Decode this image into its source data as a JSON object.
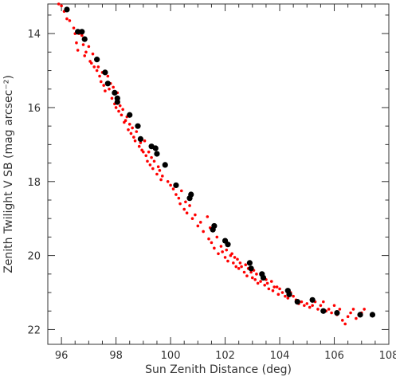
{
  "chart_data": {
    "type": "scatter",
    "title": "",
    "xlabel": "Sun Zenith Distance (deg)",
    "ylabel": "Zenith Twilight V SB (mag arcsec⁻²)",
    "xlim": [
      95.5,
      108
    ],
    "ylim": [
      13.2,
      22.4
    ],
    "y_inverted": true,
    "grid": false,
    "x_major_ticks": [
      96,
      98,
      100,
      102,
      104,
      106,
      108
    ],
    "y_major_ticks": [
      14,
      16,
      18,
      20,
      22
    ],
    "x_tick_labels": [
      "96",
      "98",
      "100",
      "102",
      "104",
      "106",
      "108"
    ],
    "y_tick_labels": [
      "14",
      "16",
      "18",
      "20",
      "22"
    ],
    "series": [
      {
        "marker": "large-dot",
        "color": "#000000",
        "points": [
          [
            96.2,
            13.35
          ],
          [
            96.6,
            13.95
          ],
          [
            96.75,
            13.95
          ],
          [
            96.85,
            14.15
          ],
          [
            97.3,
            14.7
          ],
          [
            97.6,
            15.05
          ],
          [
            97.7,
            15.35
          ],
          [
            97.95,
            15.6
          ],
          [
            98.05,
            15.75
          ],
          [
            98.05,
            15.85
          ],
          [
            98.5,
            16.2
          ],
          [
            98.8,
            16.5
          ],
          [
            98.9,
            16.85
          ],
          [
            99.3,
            17.05
          ],
          [
            99.45,
            17.1
          ],
          [
            99.5,
            17.25
          ],
          [
            99.8,
            17.55
          ],
          [
            100.2,
            18.1
          ],
          [
            100.7,
            18.45
          ],
          [
            100.75,
            18.35
          ],
          [
            101.6,
            19.2
          ],
          [
            101.55,
            19.3
          ],
          [
            102.0,
            19.6
          ],
          [
            102.1,
            19.7
          ],
          [
            102.9,
            20.2
          ],
          [
            102.95,
            20.35
          ],
          [
            103.35,
            20.5
          ],
          [
            103.4,
            20.6
          ],
          [
            104.3,
            20.95
          ],
          [
            104.35,
            21.05
          ],
          [
            104.65,
            21.25
          ],
          [
            105.2,
            21.2
          ],
          [
            105.6,
            21.5
          ],
          [
            106.1,
            21.55
          ],
          [
            106.95,
            21.6
          ],
          [
            107.4,
            21.6
          ]
        ]
      },
      {
        "marker": "small-dot",
        "color": "#ff0000",
        "points": [
          [
            95.9,
            13.2
          ],
          [
            96.0,
            13.25
          ],
          [
            96.1,
            13.4
          ],
          [
            96.2,
            13.6
          ],
          [
            96.3,
            13.65
          ],
          [
            96.45,
            13.85
          ],
          [
            96.5,
            14.0
          ],
          [
            96.55,
            14.25
          ],
          [
            96.6,
            14.45
          ],
          [
            96.65,
            14.0
          ],
          [
            96.75,
            14.05
          ],
          [
            96.8,
            14.3
          ],
          [
            96.85,
            14.6
          ],
          [
            96.9,
            14.5
          ],
          [
            97.0,
            14.35
          ],
          [
            97.05,
            14.75
          ],
          [
            97.1,
            14.8
          ],
          [
            97.15,
            14.55
          ],
          [
            97.2,
            14.9
          ],
          [
            97.3,
            15.0
          ],
          [
            97.35,
            14.9
          ],
          [
            97.4,
            15.15
          ],
          [
            97.45,
            15.3
          ],
          [
            97.5,
            15.05
          ],
          [
            97.55,
            15.4
          ],
          [
            97.6,
            15.55
          ],
          [
            97.7,
            15.15
          ],
          [
            97.75,
            15.5
          ],
          [
            97.8,
            15.35
          ],
          [
            97.85,
            15.75
          ],
          [
            97.9,
            15.45
          ],
          [
            97.95,
            15.9
          ],
          [
            98.0,
            16.0
          ],
          [
            98.05,
            15.6
          ],
          [
            98.1,
            16.1
          ],
          [
            98.15,
            15.95
          ],
          [
            98.2,
            16.2
          ],
          [
            98.25,
            16.05
          ],
          [
            98.3,
            16.4
          ],
          [
            98.35,
            16.35
          ],
          [
            98.4,
            16.25
          ],
          [
            98.45,
            16.6
          ],
          [
            98.5,
            16.45
          ],
          [
            98.55,
            16.7
          ],
          [
            98.6,
            16.55
          ],
          [
            98.65,
            16.8
          ],
          [
            98.7,
            16.9
          ],
          [
            98.75,
            16.65
          ],
          [
            98.85,
            17.05
          ],
          [
            98.9,
            16.95
          ],
          [
            98.95,
            17.15
          ],
          [
            99.0,
            17.2
          ],
          [
            99.05,
            16.9
          ],
          [
            99.1,
            17.3
          ],
          [
            99.15,
            17.45
          ],
          [
            99.2,
            17.2
          ],
          [
            99.25,
            17.55
          ],
          [
            99.3,
            17.35
          ],
          [
            99.35,
            17.65
          ],
          [
            99.4,
            17.45
          ],
          [
            99.5,
            17.8
          ],
          [
            99.55,
            17.6
          ],
          [
            99.6,
            17.7
          ],
          [
            99.65,
            17.95
          ],
          [
            99.7,
            17.85
          ],
          [
            99.9,
            18.0
          ],
          [
            100.0,
            18.1
          ],
          [
            100.1,
            18.2
          ],
          [
            100.2,
            18.35
          ],
          [
            100.3,
            18.45
          ],
          [
            100.35,
            18.6
          ],
          [
            100.4,
            18.25
          ],
          [
            100.5,
            18.75
          ],
          [
            100.55,
            18.55
          ],
          [
            100.6,
            18.85
          ],
          [
            100.7,
            18.65
          ],
          [
            100.8,
            19.0
          ],
          [
            100.9,
            18.9
          ],
          [
            101.0,
            19.2
          ],
          [
            101.1,
            19.1
          ],
          [
            101.2,
            19.35
          ],
          [
            101.35,
            18.95
          ],
          [
            101.4,
            19.55
          ],
          [
            101.45,
            19.25
          ],
          [
            101.5,
            19.65
          ],
          [
            101.6,
            19.8
          ],
          [
            101.7,
            19.5
          ],
          [
            101.75,
            19.95
          ],
          [
            101.85,
            19.75
          ],
          [
            101.9,
            19.9
          ],
          [
            102.0,
            20.05
          ],
          [
            102.05,
            19.85
          ],
          [
            102.1,
            20.15
          ],
          [
            102.2,
            20.0
          ],
          [
            102.25,
            19.95
          ],
          [
            102.3,
            20.2
          ],
          [
            102.35,
            20.05
          ],
          [
            102.4,
            20.3
          ],
          [
            102.45,
            20.1
          ],
          [
            102.5,
            20.35
          ],
          [
            102.55,
            20.2
          ],
          [
            102.6,
            20.3
          ],
          [
            102.7,
            20.45
          ],
          [
            102.75,
            20.25
          ],
          [
            102.8,
            20.55
          ],
          [
            102.85,
            20.35
          ],
          [
            102.95,
            20.45
          ],
          [
            103.0,
            20.6
          ],
          [
            103.05,
            20.4
          ],
          [
            103.1,
            20.65
          ],
          [
            103.15,
            20.5
          ],
          [
            103.2,
            20.75
          ],
          [
            103.3,
            20.7
          ],
          [
            103.35,
            20.55
          ],
          [
            103.45,
            20.8
          ],
          [
            103.5,
            20.65
          ],
          [
            103.55,
            20.75
          ],
          [
            103.6,
            20.9
          ],
          [
            103.7,
            20.7
          ],
          [
            103.75,
            20.95
          ],
          [
            103.8,
            20.85
          ],
          [
            103.9,
            20.85
          ],
          [
            103.95,
            21.05
          ],
          [
            104.0,
            20.9
          ],
          [
            104.1,
            21.0
          ],
          [
            104.2,
            21.1
          ],
          [
            104.3,
            21.15
          ],
          [
            104.4,
            21.0
          ],
          [
            104.5,
            21.1
          ],
          [
            104.6,
            21.2
          ],
          [
            104.7,
            21.3
          ],
          [
            104.8,
            21.25
          ],
          [
            104.9,
            21.35
          ],
          [
            105.0,
            21.3
          ],
          [
            105.1,
            21.4
          ],
          [
            105.2,
            21.35
          ],
          [
            105.3,
            21.25
          ],
          [
            105.4,
            21.45
          ],
          [
            105.5,
            21.35
          ],
          [
            105.6,
            21.25
          ],
          [
            105.7,
            21.5
          ],
          [
            105.8,
            21.45
          ],
          [
            105.9,
            21.55
          ],
          [
            106.0,
            21.35
          ],
          [
            106.1,
            21.6
          ],
          [
            106.2,
            21.45
          ],
          [
            106.3,
            21.75
          ],
          [
            106.4,
            21.85
          ],
          [
            106.5,
            21.65
          ],
          [
            106.6,
            21.55
          ],
          [
            106.7,
            21.45
          ],
          [
            106.8,
            21.7
          ],
          [
            106.9,
            21.6
          ],
          [
            107.0,
            21.55
          ],
          [
            107.1,
            21.45
          ]
        ]
      }
    ]
  }
}
